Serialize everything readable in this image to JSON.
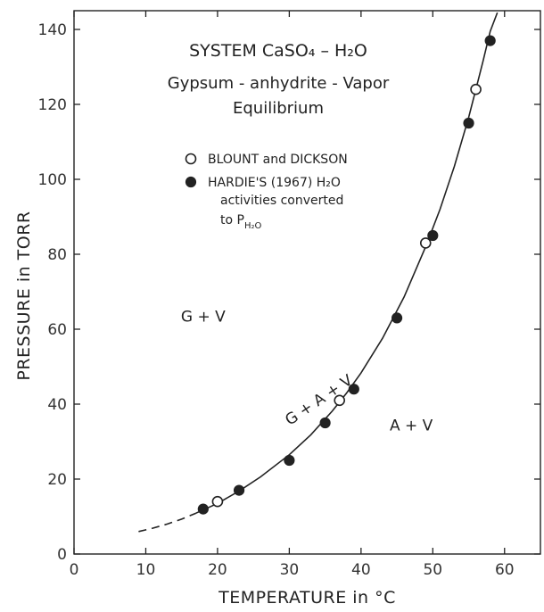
{
  "chart_data": {
    "type": "scatter",
    "title_lines": [
      "SYSTEM CaSO₄ – H₂O",
      "Gypsum - anhydrite - Vapor",
      "Equilibrium"
    ],
    "xlabel": "TEMPERATURE in °C",
    "ylabel": "PRESSURE in TORR",
    "xlim": [
      0,
      65
    ],
    "ylim": [
      0,
      145
    ],
    "x_ticks": [
      0,
      10,
      20,
      30,
      40,
      50,
      60
    ],
    "y_ticks": [
      0,
      20,
      40,
      60,
      80,
      100,
      120,
      140
    ],
    "grid": false,
    "legend": {
      "position": "top-center",
      "entries": [
        {
          "marker": "open-circle",
          "label_lines": [
            "BLOUNT and DICKSON"
          ]
        },
        {
          "marker": "filled-circle",
          "label_lines": [
            "HARDIE'S (1967) H₂O",
            "activities converted",
            "to P",
            "H₂O"
          ]
        }
      ]
    },
    "series": [
      {
        "name": "BLOUNT and DICKSON",
        "marker": "open-circle",
        "x": [
          20,
          37,
          49,
          56
        ],
        "y": [
          14,
          41,
          83,
          124
        ]
      },
      {
        "name": "HARDIE'S (1967) H₂O activities converted to P H₂O",
        "marker": "filled-circle",
        "x": [
          18,
          23,
          30,
          35,
          39,
          45,
          50,
          55,
          58
        ],
        "y": [
          12,
          17,
          25,
          35,
          44,
          63,
          85,
          115,
          137
        ]
      }
    ],
    "curve": {
      "dashed": {
        "x": [
          9,
          11,
          13,
          15,
          17
        ],
        "y": [
          6,
          6.9,
          8,
          9.3,
          10.9
        ]
      },
      "solid": {
        "x": [
          17,
          20,
          23,
          26,
          30,
          33,
          36,
          38,
          40,
          43,
          46,
          49,
          51,
          53,
          55,
          56,
          57,
          58,
          59
        ],
        "y": [
          10.9,
          13.5,
          16.8,
          20.6,
          26.5,
          31.8,
          38.2,
          43,
          48.3,
          57.6,
          68.6,
          82,
          92,
          103.4,
          116.5,
          124,
          131.5,
          139.5,
          146
        ]
      }
    },
    "region_labels": [
      {
        "text": "G + V",
        "x": 18,
        "y": 62
      },
      {
        "text": "A + V",
        "x": 47,
        "y": 33
      },
      {
        "text": "G + A + V",
        "x": 34.5,
        "y": 40,
        "rotation_deg": -34
      }
    ]
  }
}
